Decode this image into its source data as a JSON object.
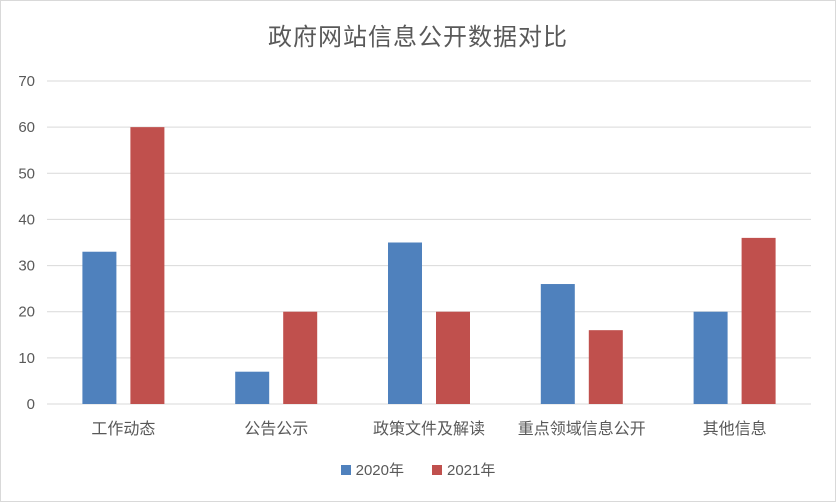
{
  "chart_data": {
    "type": "bar",
    "title": "政府网站信息公开数据对比",
    "categories": [
      "工作动态",
      "公告公示",
      "政策文件及解读",
      "重点领域信息公开",
      "其他信息"
    ],
    "series": [
      {
        "name": "2020年",
        "values": [
          33,
          7,
          35,
          26,
          20
        ],
        "color": "#4f81bd"
      },
      {
        "name": "2021年",
        "values": [
          60,
          20,
          20,
          16,
          36
        ],
        "color": "#c0504d"
      }
    ],
    "ylim": [
      0,
      70
    ],
    "yticks": [
      0,
      10,
      20,
      30,
      40,
      50,
      60,
      70
    ],
    "grid": true,
    "legend_position": "bottom"
  }
}
